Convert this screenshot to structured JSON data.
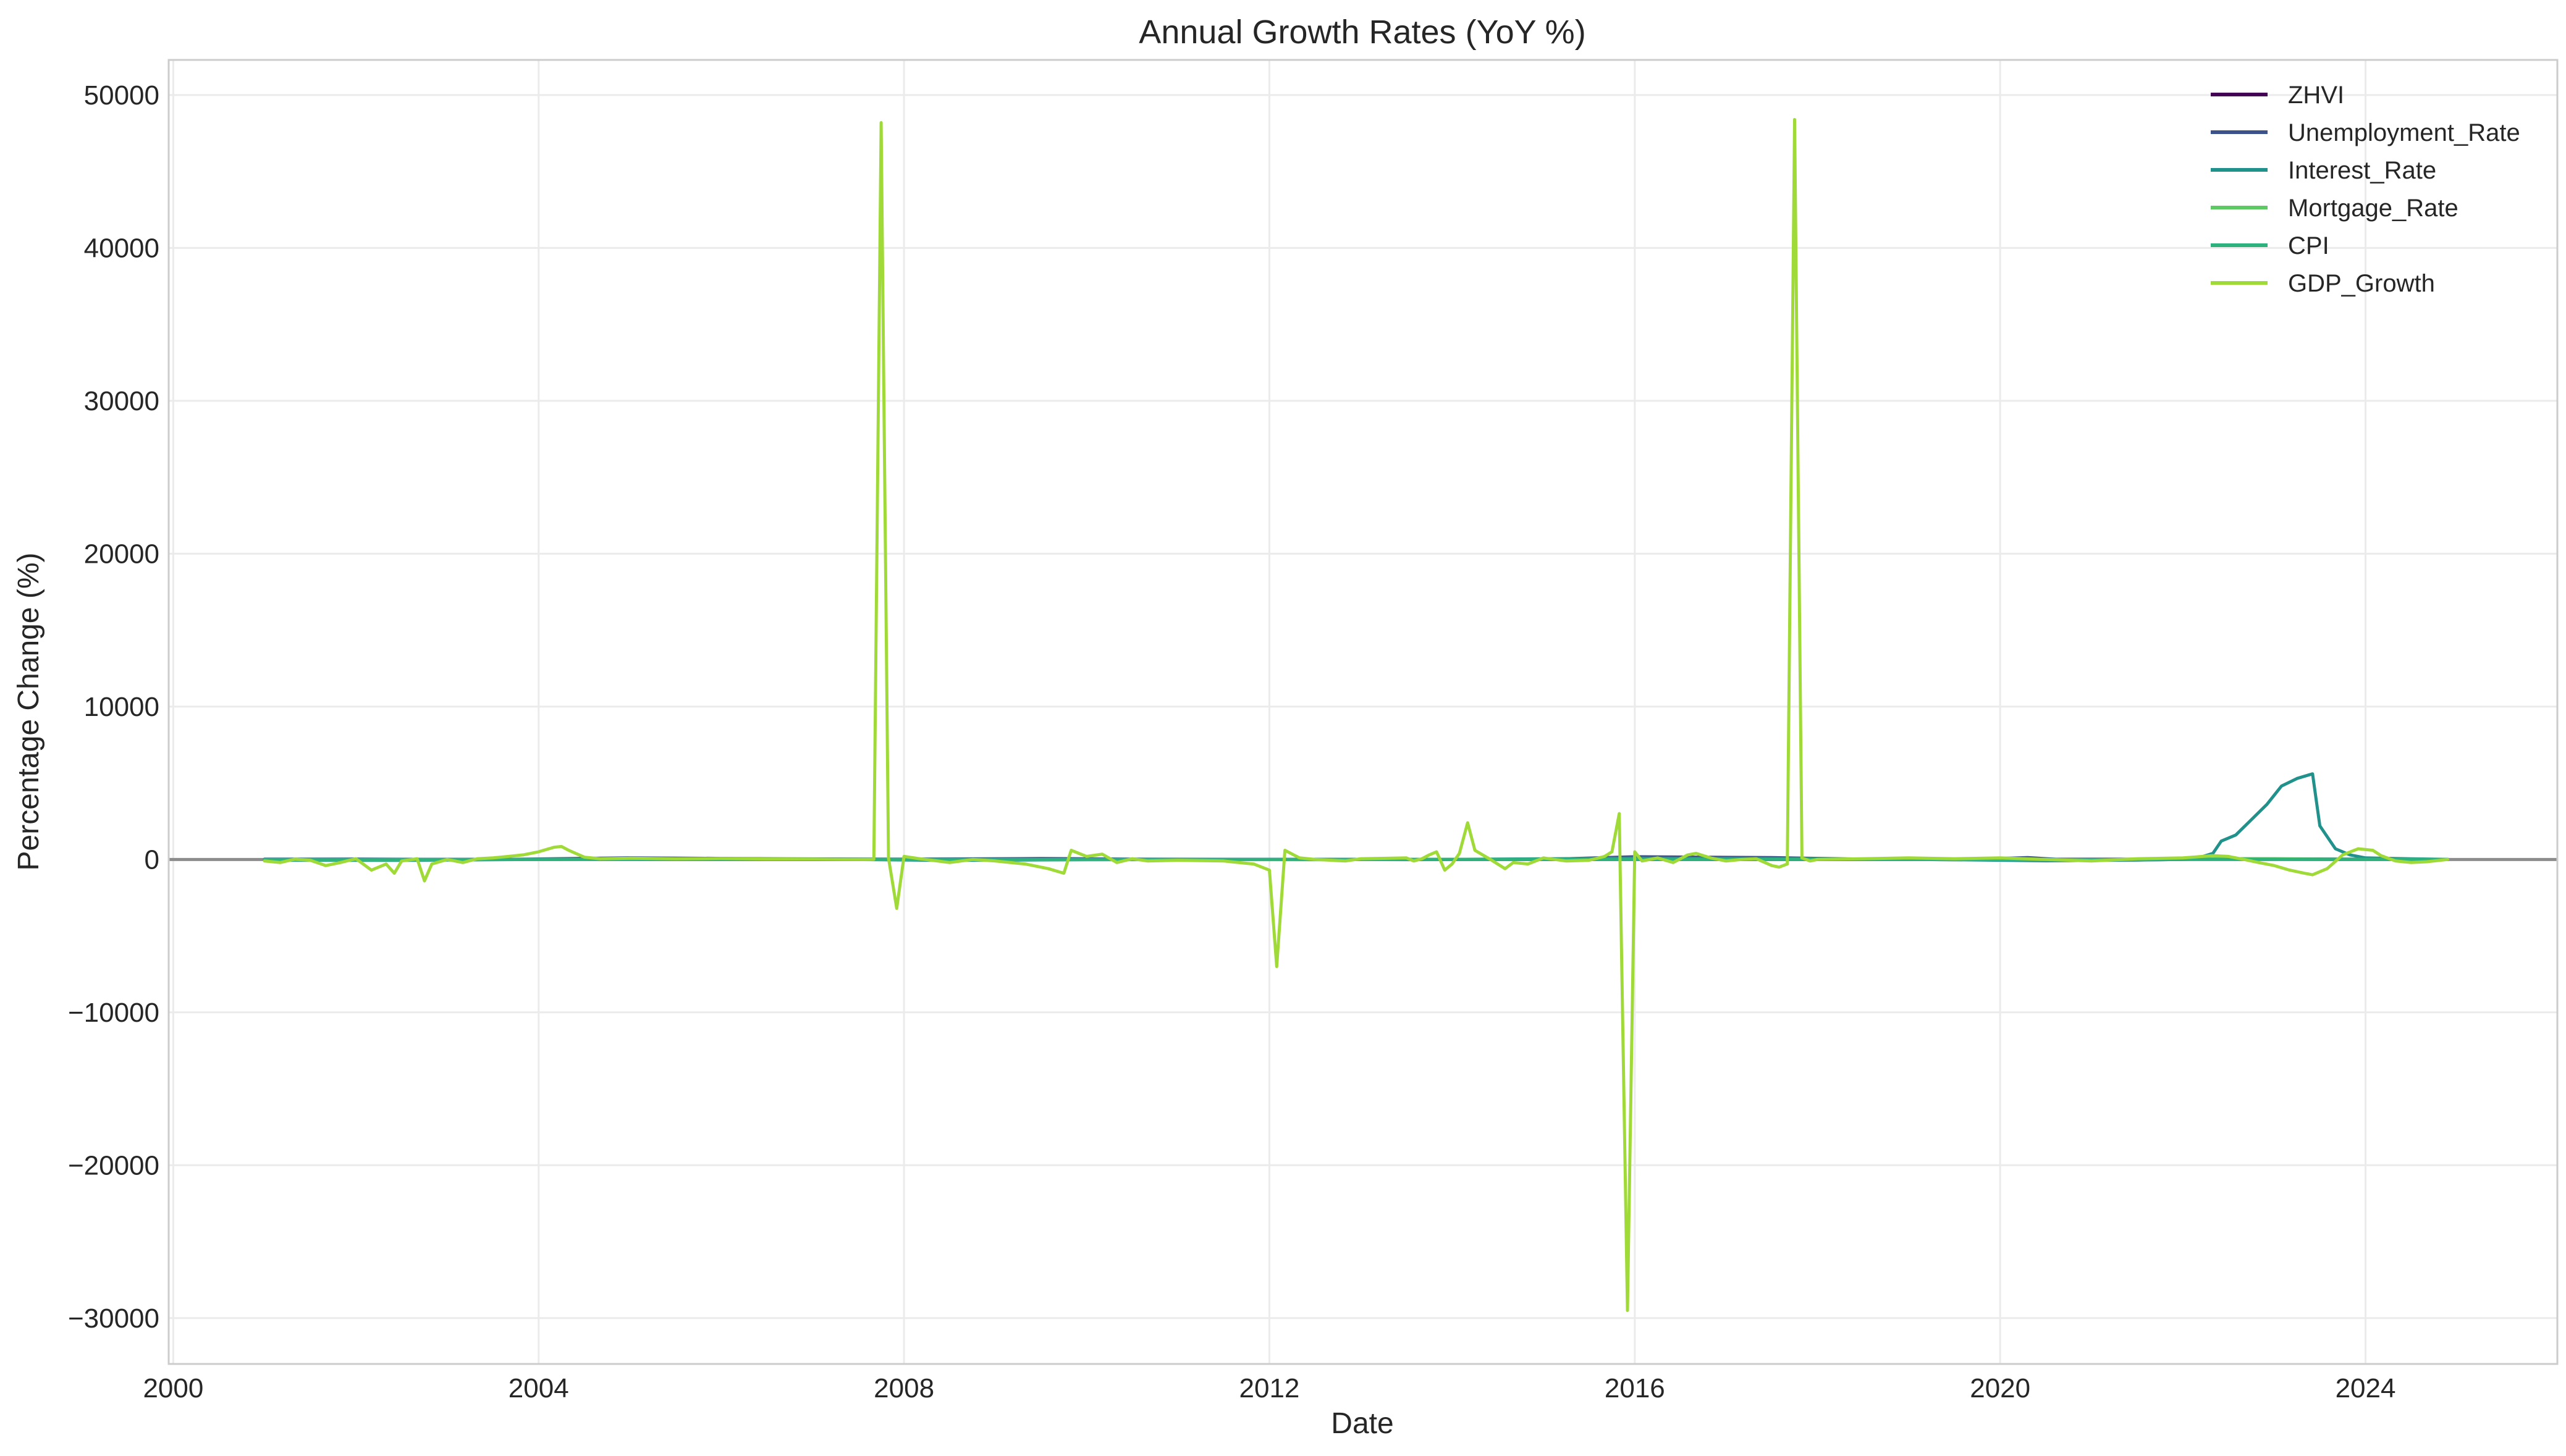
{
  "chart_data": {
    "type": "line",
    "title": "Annual Growth Rates (YoY %)",
    "xlabel": "Date",
    "ylabel": "Percentage Change (%)",
    "xlim": [
      1999.95,
      2026.1
    ],
    "ylim": [
      -33000,
      52300
    ],
    "x_ticks": [
      2000,
      2004,
      2008,
      2012,
      2016,
      2020,
      2024
    ],
    "x_tick_labels": [
      "2000",
      "2004",
      "2008",
      "2012",
      "2016",
      "2020",
      "2024"
    ],
    "y_ticks": [
      -30000,
      -20000,
      -10000,
      0,
      10000,
      20000,
      30000,
      40000,
      50000
    ],
    "y_tick_labels": [
      "−30000",
      "−20000",
      "−10000",
      "0",
      "10000",
      "20000",
      "30000",
      "40000",
      "50000"
    ],
    "grid": true,
    "legend_position": "top-right",
    "zero_line": true,
    "series": [
      {
        "name": "ZHVI",
        "color": "#440154",
        "points": [
          [
            2001.0,
            5
          ],
          [
            2003.0,
            8
          ],
          [
            2005.0,
            12
          ],
          [
            2007.0,
            6
          ],
          [
            2009.0,
            -8
          ],
          [
            2011.0,
            -3
          ],
          [
            2013.0,
            10
          ],
          [
            2015.0,
            5
          ],
          [
            2017.0,
            6
          ],
          [
            2019.0,
            4
          ],
          [
            2021.0,
            15
          ],
          [
            2022.5,
            14
          ],
          [
            2024.9,
            4
          ]
        ]
      },
      {
        "name": "Unemployment_Rate",
        "color": "#3b528b",
        "points": [
          [
            2001.0,
            20
          ],
          [
            2002.0,
            30
          ],
          [
            2003.5,
            -5
          ],
          [
            2005.0,
            110
          ],
          [
            2006.5,
            50
          ],
          [
            2008.0,
            20
          ],
          [
            2009.5,
            60
          ],
          [
            2010.5,
            20
          ],
          [
            2012.0,
            10
          ],
          [
            2013.5,
            -10
          ],
          [
            2015.0,
            0
          ],
          [
            2016.0,
            180
          ],
          [
            2017.5,
            120
          ],
          [
            2018.5,
            20
          ],
          [
            2019.5,
            -20
          ],
          [
            2020.3,
            120
          ],
          [
            2020.8,
            -50
          ],
          [
            2021.5,
            -40
          ],
          [
            2022.5,
            50
          ],
          [
            2023.0,
            40
          ],
          [
            2024.9,
            0
          ]
        ]
      },
      {
        "name": "Interest_Rate",
        "color": "#21918c",
        "points": [
          [
            2001.0,
            -50
          ],
          [
            2002.5,
            -60
          ],
          [
            2004.0,
            0
          ],
          [
            2005.0,
            30
          ],
          [
            2007.0,
            20
          ],
          [
            2008.5,
            -60
          ],
          [
            2010.0,
            -20
          ],
          [
            2012.0,
            0
          ],
          [
            2014.0,
            10
          ],
          [
            2016.0,
            80
          ],
          [
            2017.0,
            60
          ],
          [
            2018.0,
            40
          ],
          [
            2019.5,
            -20
          ],
          [
            2020.5,
            -90
          ],
          [
            2021.5,
            -30
          ],
          [
            2022.0,
            0
          ],
          [
            2022.17,
            100
          ],
          [
            2022.33,
            400
          ],
          [
            2022.42,
            1200
          ],
          [
            2022.58,
            1600
          ],
          [
            2022.75,
            2600
          ],
          [
            2022.92,
            3600
          ],
          [
            2023.08,
            4800
          ],
          [
            2023.25,
            5300
          ],
          [
            2023.42,
            5600
          ],
          [
            2023.5,
            2200
          ],
          [
            2023.67,
            700
          ],
          [
            2023.83,
            300
          ],
          [
            2024.0,
            100
          ],
          [
            2024.5,
            40
          ],
          [
            2024.9,
            10
          ]
        ]
      },
      {
        "name": "Mortgage_Rate",
        "color": "#5ec962",
        "points": [
          [
            2001.0,
            -20
          ],
          [
            2002.5,
            -20
          ],
          [
            2004.0,
            10
          ],
          [
            2005.0,
            20
          ],
          [
            2006.5,
            15
          ],
          [
            2008.5,
            -5
          ],
          [
            2009.5,
            -10
          ],
          [
            2011.0,
            -5
          ],
          [
            2012.5,
            -15
          ],
          [
            2013.5,
            10
          ],
          [
            2015.0,
            0
          ],
          [
            2016.5,
            5
          ],
          [
            2018.0,
            10
          ],
          [
            2019.5,
            -5
          ],
          [
            2020.5,
            -15
          ],
          [
            2021.5,
            0
          ],
          [
            2022.5,
            50
          ],
          [
            2023.0,
            40
          ],
          [
            2024.0,
            5
          ],
          [
            2024.9,
            0
          ]
        ]
      },
      {
        "name": "CPI",
        "color": "#2db27d",
        "points": [
          [
            2001.0,
            3
          ],
          [
            2002.0,
            2
          ],
          [
            2004.0,
            3
          ],
          [
            2006.0,
            3
          ],
          [
            2008.5,
            4
          ],
          [
            2009.5,
            -1
          ],
          [
            2011.0,
            3
          ],
          [
            2013.0,
            2
          ],
          [
            2015.0,
            0
          ],
          [
            2017.0,
            2
          ],
          [
            2019.0,
            2
          ],
          [
            2020.5,
            1
          ],
          [
            2021.5,
            5
          ],
          [
            2022.5,
            8
          ],
          [
            2023.5,
            4
          ],
          [
            2024.9,
            3
          ]
        ]
      },
      {
        "name": "GDP_Growth",
        "color": "#a0da39",
        "points": [
          [
            2001.0,
            -100
          ],
          [
            2001.17,
            -200
          ],
          [
            2001.33,
            20
          ],
          [
            2001.5,
            -50
          ],
          [
            2001.67,
            -400
          ],
          [
            2001.83,
            -200
          ],
          [
            2002.0,
            50
          ],
          [
            2002.17,
            -700
          ],
          [
            2002.33,
            -300
          ],
          [
            2002.42,
            -900
          ],
          [
            2002.5,
            -100
          ],
          [
            2002.67,
            50
          ],
          [
            2002.75,
            -1400
          ],
          [
            2002.83,
            -300
          ],
          [
            2003.0,
            0
          ],
          [
            2003.17,
            -200
          ],
          [
            2003.33,
            50
          ],
          [
            2003.5,
            100
          ],
          [
            2003.67,
            200
          ],
          [
            2003.83,
            300
          ],
          [
            2004.0,
            500
          ],
          [
            2004.17,
            800
          ],
          [
            2004.25,
            850
          ],
          [
            2004.33,
            600
          ],
          [
            2004.5,
            150
          ],
          [
            2004.67,
            50
          ],
          [
            2005.0,
            80
          ],
          [
            2005.5,
            40
          ],
          [
            2006.0,
            60
          ],
          [
            2006.5,
            30
          ],
          [
            2007.0,
            20
          ],
          [
            2007.33,
            10
          ],
          [
            2007.58,
            0
          ],
          [
            2007.67,
            10
          ],
          [
            2007.75,
            48200
          ],
          [
            2007.83,
            100
          ],
          [
            2007.92,
            -3200
          ],
          [
            2008.0,
            200
          ],
          [
            2008.17,
            50
          ],
          [
            2008.5,
            -200
          ],
          [
            2008.75,
            0
          ],
          [
            2009.0,
            -100
          ],
          [
            2009.33,
            -300
          ],
          [
            2009.58,
            -600
          ],
          [
            2009.75,
            -900
          ],
          [
            2009.83,
            600
          ],
          [
            2010.0,
            200
          ],
          [
            2010.17,
            350
          ],
          [
            2010.33,
            -200
          ],
          [
            2010.5,
            50
          ],
          [
            2010.67,
            -100
          ],
          [
            2011.0,
            -50
          ],
          [
            2011.5,
            -100
          ],
          [
            2011.83,
            -300
          ],
          [
            2012.0,
            -700
          ],
          [
            2012.08,
            -7000
          ],
          [
            2012.17,
            600
          ],
          [
            2012.33,
            100
          ],
          [
            2012.5,
            0
          ],
          [
            2012.83,
            -100
          ],
          [
            2013.0,
            50
          ],
          [
            2013.33,
            80
          ],
          [
            2013.5,
            100
          ],
          [
            2013.58,
            -100
          ],
          [
            2013.67,
            50
          ],
          [
            2013.75,
            300
          ],
          [
            2013.83,
            500
          ],
          [
            2013.92,
            -700
          ],
          [
            2014.0,
            -300
          ],
          [
            2014.08,
            400
          ],
          [
            2014.17,
            2400
          ],
          [
            2014.25,
            600
          ],
          [
            2014.42,
            0
          ],
          [
            2014.58,
            -600
          ],
          [
            2014.67,
            -200
          ],
          [
            2014.83,
            -300
          ],
          [
            2015.0,
            100
          ],
          [
            2015.25,
            -100
          ],
          [
            2015.5,
            -50
          ],
          [
            2015.67,
            200
          ],
          [
            2015.75,
            500
          ],
          [
            2015.83,
            3000
          ],
          [
            2015.92,
            -29500
          ],
          [
            2016.0,
            500
          ],
          [
            2016.08,
            -100
          ],
          [
            2016.25,
            100
          ],
          [
            2016.42,
            -200
          ],
          [
            2016.58,
            300
          ],
          [
            2016.67,
            400
          ],
          [
            2016.83,
            100
          ],
          [
            2017.0,
            -100
          ],
          [
            2017.17,
            0
          ],
          [
            2017.33,
            50
          ],
          [
            2017.5,
            -400
          ],
          [
            2017.58,
            -500
          ],
          [
            2017.67,
            -300
          ],
          [
            2017.75,
            48400
          ],
          [
            2017.83,
            100
          ],
          [
            2017.92,
            -100
          ],
          [
            2018.0,
            0
          ],
          [
            2018.5,
            50
          ],
          [
            2019.0,
            100
          ],
          [
            2019.5,
            50
          ],
          [
            2020.0,
            100
          ],
          [
            2020.5,
            0
          ],
          [
            2021.0,
            -100
          ],
          [
            2021.5,
            50
          ],
          [
            2022.0,
            100
          ],
          [
            2022.33,
            250
          ],
          [
            2022.5,
            200
          ],
          [
            2022.67,
            0
          ],
          [
            2022.83,
            -200
          ],
          [
            2023.0,
            -400
          ],
          [
            2023.17,
            -700
          ],
          [
            2023.33,
            -900
          ],
          [
            2023.42,
            -1000
          ],
          [
            2023.58,
            -600
          ],
          [
            2023.75,
            300
          ],
          [
            2023.92,
            700
          ],
          [
            2024.08,
            600
          ],
          [
            2024.17,
            250
          ],
          [
            2024.33,
            -100
          ],
          [
            2024.5,
            -200
          ],
          [
            2024.67,
            -150
          ],
          [
            2024.9,
            0
          ]
        ]
      }
    ]
  }
}
